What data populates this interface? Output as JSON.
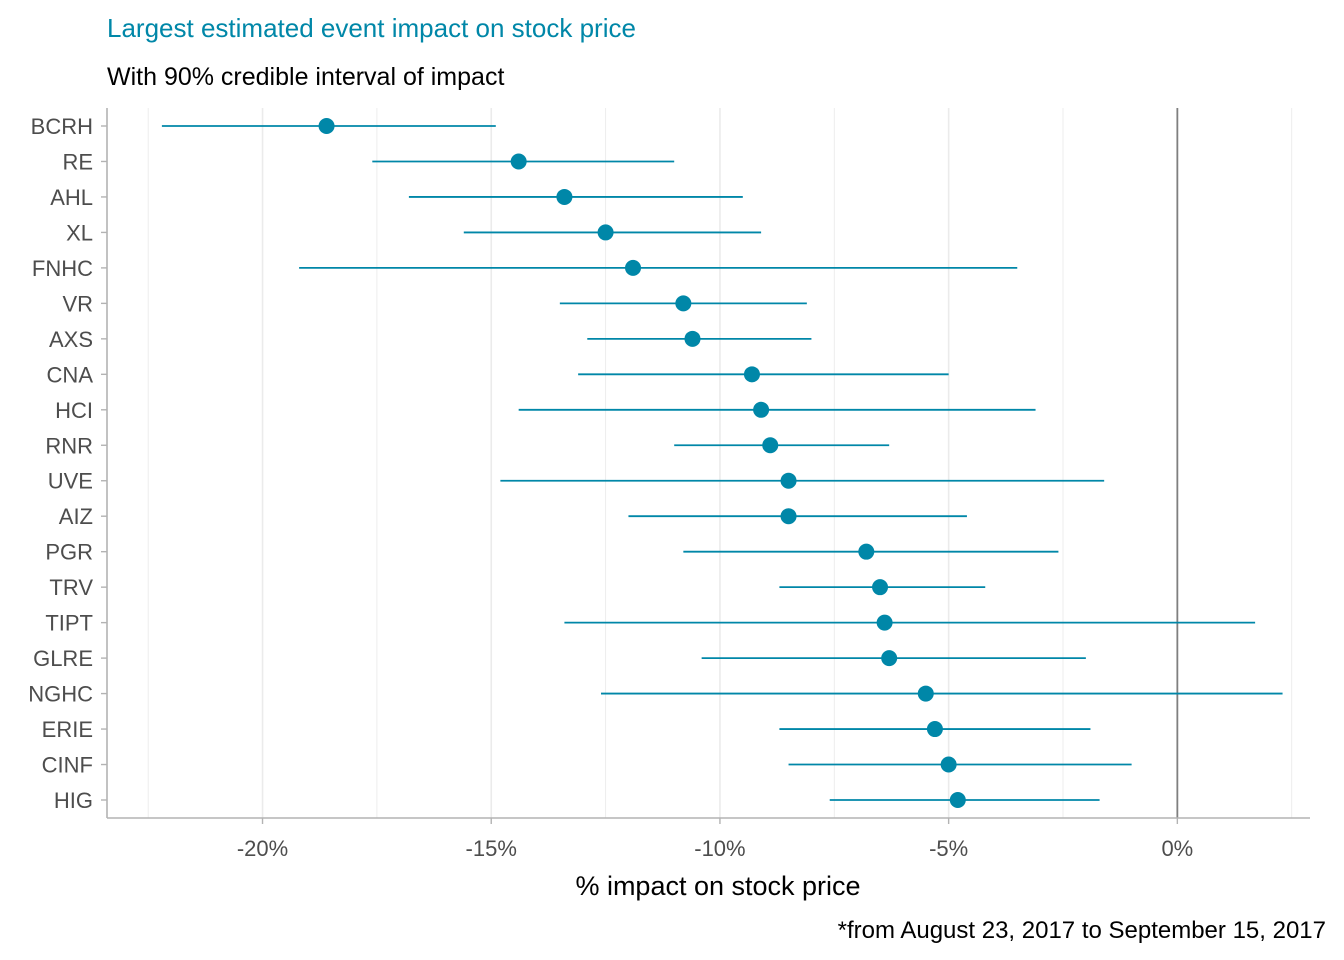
{
  "chart_data": {
    "type": "scatter",
    "subtype": "point-range",
    "title": "Largest estimated event impact on stock price",
    "subtitle": "With 90% credible interval of impact",
    "xlabel": "% impact on stock price",
    "ylabel": "",
    "caption": "*from August 23, 2017 to September 15, 2017",
    "xlim": [
      -23.4,
      2.9
    ],
    "x_ticks": [
      -20,
      -15,
      -10,
      -5,
      0
    ],
    "x_tick_labels": [
      "-20%",
      "-15%",
      "-10%",
      "-5%",
      "0%"
    ],
    "reference_line": 0,
    "grid": "vertical",
    "legend": "none",
    "categories": [
      "BCRH",
      "RE",
      "AHL",
      "XL",
      "FNHC",
      "VR",
      "AXS",
      "CNA",
      "HCI",
      "RNR",
      "UVE",
      "AIZ",
      "PGR",
      "TRV",
      "TIPT",
      "GLRE",
      "NGHC",
      "ERIE",
      "CINF",
      "HIG"
    ],
    "series": [
      {
        "estimate": [
          -18.6,
          -14.4,
          -13.4,
          -12.5,
          -11.9,
          -10.8,
          -10.6,
          -9.3,
          -9.1,
          -8.9,
          -8.5,
          -8.5,
          -6.8,
          -6.5,
          -6.4,
          -6.3,
          -5.5,
          -5.3,
          -5.0,
          -4.8
        ],
        "lower": [
          -22.2,
          -17.6,
          -16.8,
          -15.6,
          -19.2,
          -13.5,
          -12.9,
          -13.1,
          -14.4,
          -11.0,
          -14.8,
          -12.0,
          -10.8,
          -8.7,
          -13.4,
          -10.4,
          -12.6,
          -8.7,
          -8.5,
          -7.6
        ],
        "upper": [
          -14.9,
          -11.0,
          -9.5,
          -9.1,
          -3.5,
          -8.1,
          -8.0,
          -5.0,
          -3.1,
          -6.3,
          -1.6,
          -4.6,
          -2.6,
          -4.2,
          1.7,
          -2.0,
          2.3,
          -1.9,
          -1.0,
          -1.7
        ]
      }
    ],
    "colors": {
      "title": "#0087a8",
      "point": "#0087a8",
      "interval": "#0087a8",
      "grid": "#ebebeb",
      "axis": "#b3b3b3",
      "reference_line": "#7f7f7f"
    }
  }
}
